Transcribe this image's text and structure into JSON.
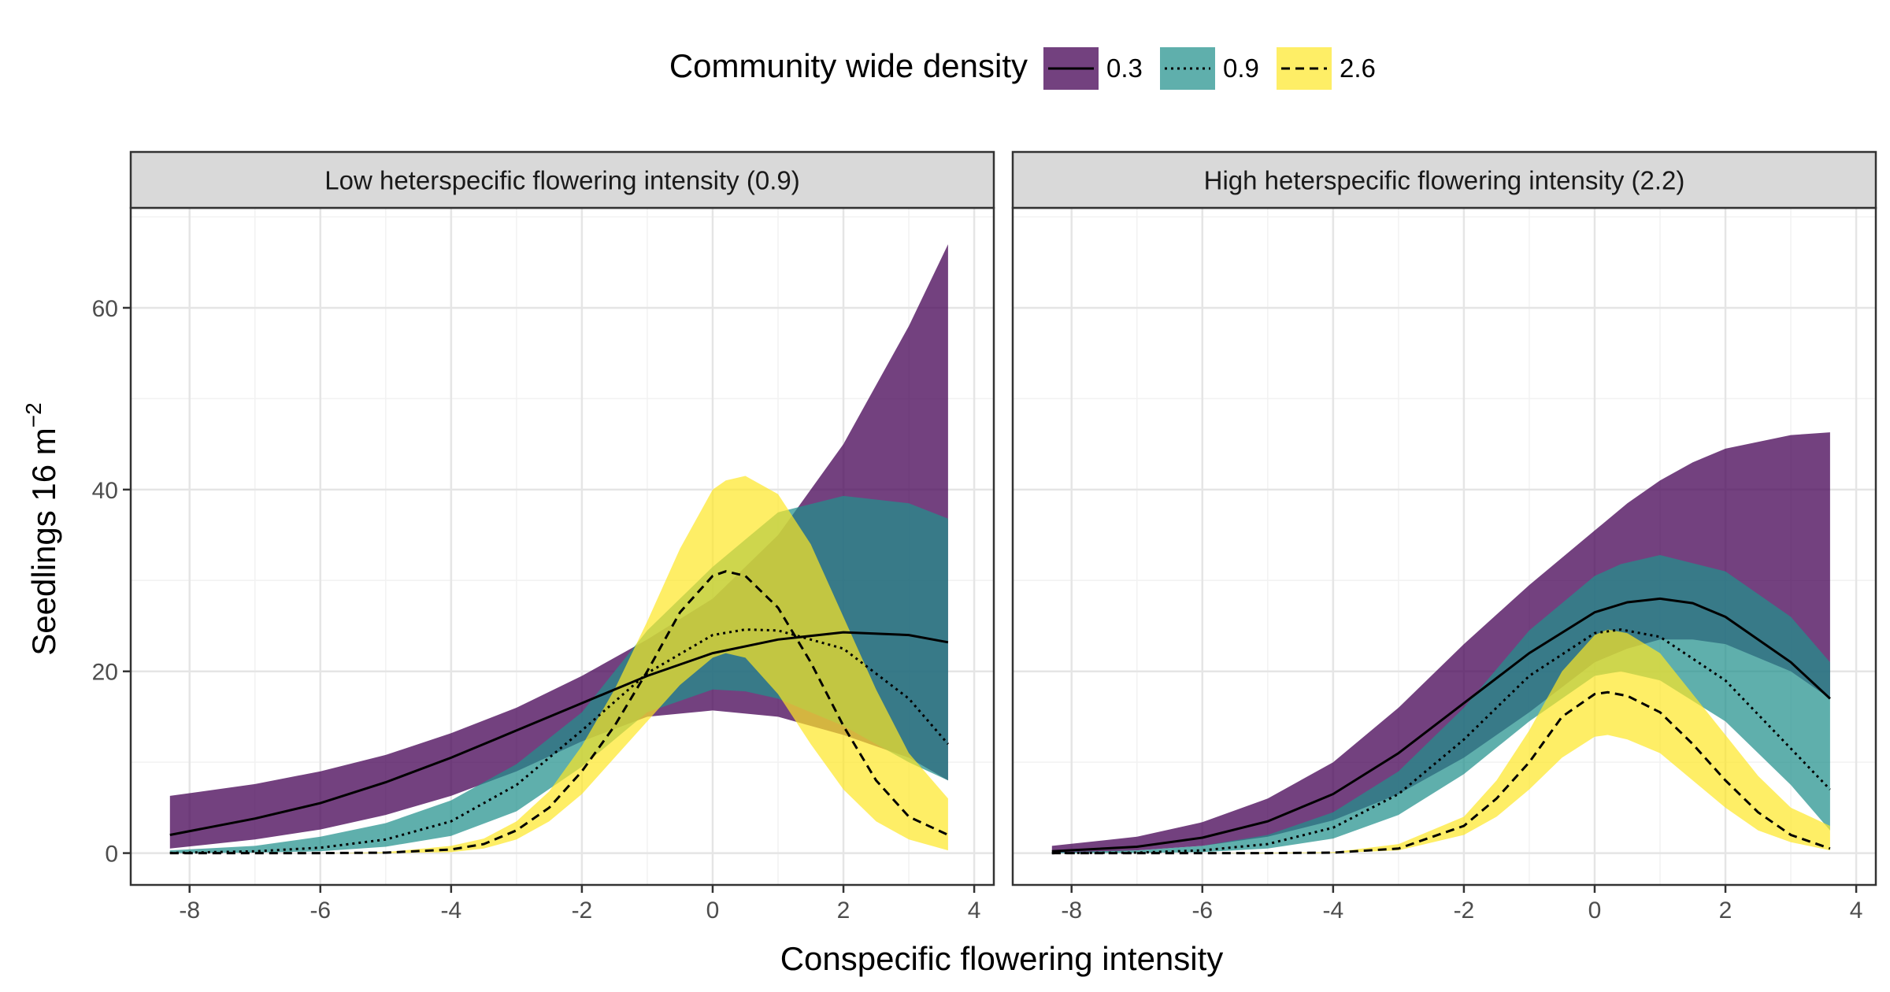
{
  "chart_data": {
    "type": "area",
    "xlabel": "Conspecific flowering intensity",
    "ylabel": "Seedlings 16 m",
    "ylabel_superscript": "−2",
    "legend": {
      "title": "Community wide density",
      "placement": "top",
      "entries": [
        {
          "label": "0.3",
          "fill": "#440154",
          "linestyle": "solid"
        },
        {
          "label": "0.9",
          "fill": "#21908C",
          "linestyle": "dotted"
        },
        {
          "label": "2.6",
          "fill": "#FDE725",
          "linestyle": "dashed"
        }
      ]
    },
    "xlim": [
      -8.9,
      4.3
    ],
    "ylim": [
      -3.5,
      71
    ],
    "x_ticks": [
      -8,
      -6,
      -4,
      -2,
      0,
      2,
      4
    ],
    "y_ticks": [
      0,
      20,
      40,
      60
    ],
    "grid": true,
    "panels": [
      {
        "title": "Low heterspecific flowering intensity (0.9)",
        "series": [
          {
            "name": "0.3",
            "color": "#440154",
            "x": [
              -8.3,
              -7,
              -6,
              -5,
              -4,
              -3,
              -2,
              -1,
              0,
              1,
              2,
              3,
              3.6
            ],
            "y": [
              2,
              3.8,
              5.5,
              7.8,
              10.5,
              13.5,
              16.5,
              19.5,
              22,
              23.5,
              24.3,
              24,
              23.2
            ],
            "lower": [
              0.5,
              1.5,
              2.6,
              4.2,
              6.3,
              9,
              12.3,
              15,
              15.7,
              15,
              13,
              10.5,
              8
            ],
            "upper": [
              6.3,
              7.6,
              9,
              10.8,
              13.2,
              16,
              19.5,
              23.5,
              28,
              35,
              45,
              58,
              67
            ]
          },
          {
            "name": "0.9",
            "color": "#21908C",
            "x": [
              -8.3,
              -7,
              -6,
              -5,
              -4,
              -3,
              -2,
              -1,
              0,
              0.5,
              1,
              2,
              3,
              3.6
            ],
            "y": [
              0.02,
              0.2,
              0.6,
              1.5,
              3.5,
              7.5,
              13.5,
              19.8,
              24,
              24.6,
              24.5,
              22.5,
              17,
              12
            ],
            "lower": [
              0,
              0.05,
              0.2,
              0.7,
              1.9,
              4.6,
              9.5,
              15.5,
              18,
              17.8,
              17,
              14,
              10,
              8
            ],
            "upper": [
              0.3,
              0.8,
              1.8,
              3.3,
              5.8,
              9.8,
              15.5,
              24.5,
              31.5,
              34.5,
              37.5,
              39.3,
              38.5,
              36.8
            ]
          },
          {
            "name": "2.6",
            "color": "#FDE725",
            "x": [
              -8.3,
              -6,
              -5,
              -4,
              -3.5,
              -3,
              -2.5,
              -2,
              -1.5,
              -1,
              -0.5,
              0,
              0.2,
              0.5,
              1,
              1.5,
              2,
              2.5,
              3,
              3.6
            ],
            "y": [
              0,
              0,
              0.05,
              0.4,
              1,
              2.5,
              5,
              9,
              14,
              20,
              26.5,
              30.5,
              31,
              30.5,
              27,
              21,
              14,
              8,
              4,
              2
            ],
            "lower": [
              0,
              0,
              0,
              0.1,
              0.5,
              1.5,
              3.5,
              6.5,
              10.5,
              14.5,
              18.5,
              21.5,
              22,
              21.5,
              17.5,
              12,
              7,
              3.5,
              1.5,
              0.3
            ],
            "upper": [
              0,
              0,
              0.1,
              0.8,
              1.6,
              3.5,
              6.8,
              11.8,
              18,
              25.5,
              33.5,
              40,
              41,
              41.5,
              39.5,
              34,
              26,
              18,
              11,
              6
            ]
          }
        ]
      },
      {
        "title": "High heterspecific flowering intensity (2.2)",
        "series": [
          {
            "name": "0.3",
            "color": "#440154",
            "x": [
              -8.3,
              -7,
              -6,
              -5,
              -4,
              -3,
              -2,
              -1,
              0,
              0.5,
              1,
              1.5,
              2,
              3,
              3.6
            ],
            "y": [
              0.2,
              0.7,
              1.7,
              3.5,
              6.5,
              11,
              16.5,
              22,
              26.5,
              27.6,
              28,
              27.5,
              26,
              21,
              17
            ],
            "lower": [
              0,
              0.3,
              0.8,
              1.8,
              3.6,
              6.5,
              10.5,
              15.5,
              21,
              22.5,
              23.5,
              23.5,
              23,
              20,
              17
            ],
            "upper": [
              0.8,
              1.8,
              3.4,
              6,
              10,
              16,
              23,
              29.5,
              35.5,
              38.5,
              41,
              43,
              44.5,
              46,
              46.3
            ]
          },
          {
            "name": "0.9",
            "color": "#21908C",
            "x": [
              -8.3,
              -7,
              -6,
              -5,
              -4,
              -3,
              -2,
              -1,
              0,
              0.4,
              1,
              2,
              3,
              3.6
            ],
            "y": [
              0,
              0.05,
              0.3,
              1,
              2.8,
              6.5,
              12.5,
              19.5,
              24.2,
              24.6,
              23.8,
              19,
              11.5,
              7
            ],
            "lower": [
              0,
              0.02,
              0.1,
              0.5,
              1.6,
              4.2,
              8.7,
              14.5,
              19.5,
              20,
              19,
              14.5,
              7.5,
              2.5
            ],
            "upper": [
              0.1,
              0.3,
              0.8,
              2,
              4.5,
              9,
              16,
              24.5,
              30.5,
              31.8,
              32.8,
              31,
              26,
              21
            ]
          },
          {
            "name": "2.6",
            "color": "#FDE725",
            "x": [
              -8.3,
              -6,
              -5,
              -4,
              -3,
              -2,
              -1.5,
              -1,
              -0.5,
              0,
              0.2,
              0.5,
              1,
              1.5,
              2,
              2.5,
              3,
              3.6
            ],
            "y": [
              0,
              0,
              0,
              0.05,
              0.5,
              3,
              6,
              10,
              15,
              17.5,
              17.7,
              17.3,
              15.5,
              12,
              8,
              4.5,
              2,
              0.5
            ],
            "lower": [
              0,
              0,
              0,
              0.02,
              0.3,
              2,
              4,
              7,
              10.5,
              12.8,
              13,
              12.5,
              11,
              8,
              5,
              2.5,
              1.2,
              0.3
            ],
            "upper": [
              0,
              0,
              0.05,
              0.1,
              1,
              4,
              8,
              13.5,
              20,
              24,
              24.6,
              24.2,
              22,
              17.5,
              13,
              8.5,
              5,
              3
            ]
          }
        ]
      }
    ]
  }
}
